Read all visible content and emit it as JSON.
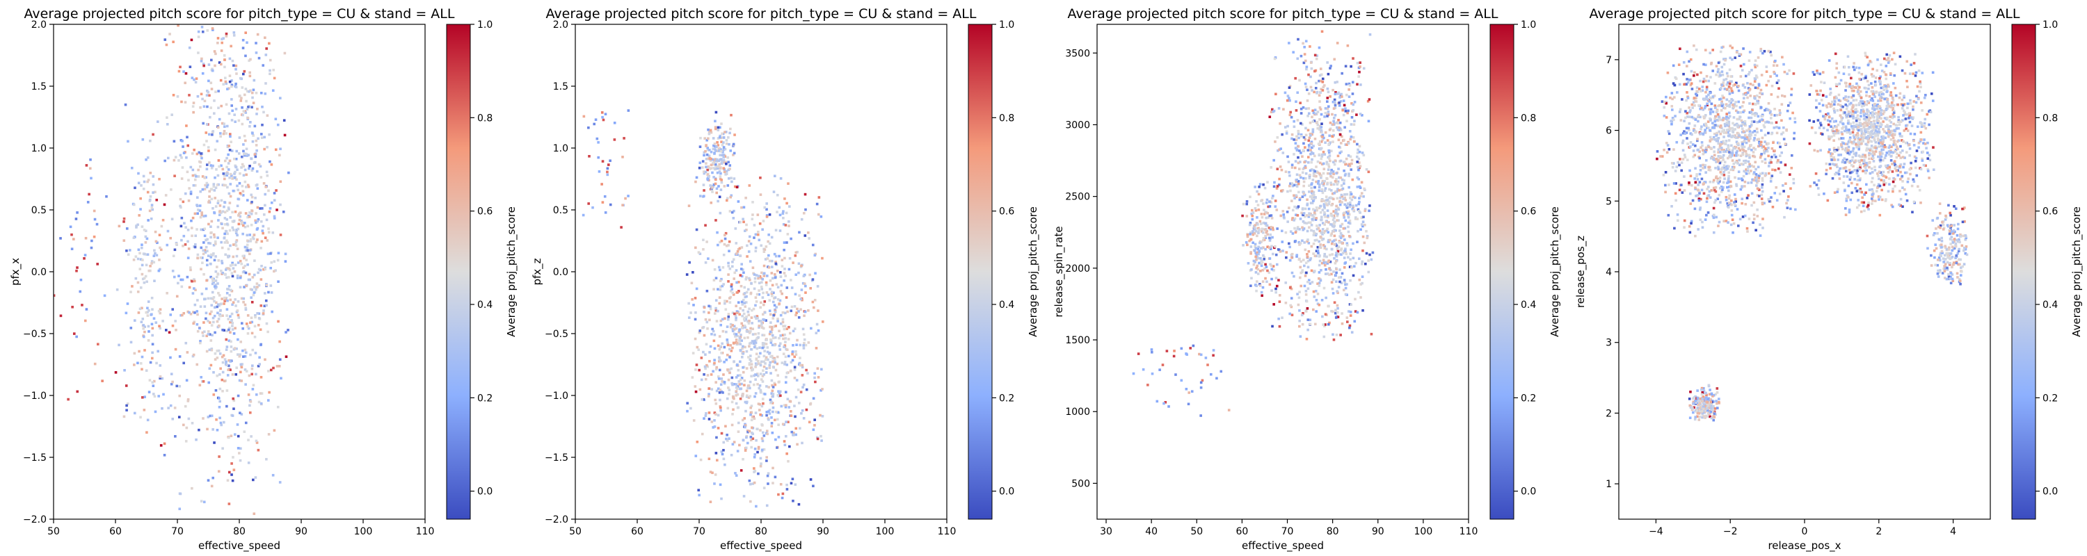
{
  "chart_data": [
    {
      "type": "heatmap",
      "title": "Average projected pitch score for pitch_type = CU & stand = ALL",
      "xlabel": "effective_speed",
      "ylabel": "pfx_x",
      "xlim": [
        50,
        110
      ],
      "ylim": [
        -2,
        2
      ],
      "xticks": [
        50,
        60,
        70,
        80,
        90,
        100,
        110
      ],
      "yticks": [
        -2.0,
        -1.5,
        -1.0,
        -0.5,
        0.0,
        0.5,
        1.0,
        1.5,
        2.0
      ],
      "colorbar": {
        "label": "Average proj_pitch_score",
        "colormap": "coolwarm",
        "range": [
          -0.06,
          1.0
        ],
        "ticks": [
          0.0,
          0.2,
          0.4,
          0.6,
          0.8,
          1.0
        ]
      },
      "cluster_regions": [
        {
          "x": [
            68,
            88
          ],
          "y": [
            -2.0,
            2.0
          ],
          "center": [
            78,
            0.3
          ],
          "density": "high"
        },
        {
          "x": [
            60,
            68
          ],
          "y": [
            -1.5,
            1.5
          ],
          "center": [
            65,
            0.0
          ],
          "density": "low"
        },
        {
          "x": [
            50,
            60
          ],
          "y": [
            -1.3,
            1.1
          ],
          "center": [
            55,
            0.0
          ],
          "density": "sparse outliers"
        }
      ]
    },
    {
      "type": "heatmap",
      "title": "Average projected pitch score for pitch_type = CU & stand = ALL",
      "xlabel": "effective_speed",
      "ylabel": "pfx_z",
      "xlim": [
        50,
        110
      ],
      "ylim": [
        -2,
        2
      ],
      "xticks": [
        50,
        60,
        70,
        80,
        90,
        100,
        110
      ],
      "yticks": [
        -2.0,
        -1.5,
        -1.0,
        -0.5,
        0.0,
        0.5,
        1.0,
        1.5,
        2.0
      ],
      "colorbar": {
        "label": "Average proj_pitch_score",
        "colormap": "coolwarm",
        "range": [
          -0.06,
          1.0
        ],
        "ticks": [
          0.0,
          0.2,
          0.4,
          0.6,
          0.8,
          1.0
        ]
      },
      "cluster_regions": [
        {
          "x": [
            68,
            90
          ],
          "y": [
            -1.9,
            0.8
          ],
          "center": [
            79,
            -0.6
          ],
          "density": "high"
        },
        {
          "x": [
            70,
            76
          ],
          "y": [
            0.6,
            1.3
          ],
          "center": [
            73,
            0.9
          ],
          "density": "low"
        },
        {
          "x": [
            51,
            60
          ],
          "y": [
            -0.3,
            1.4
          ],
          "center": [
            54,
            0.9
          ],
          "density": "sparse outliers"
        }
      ]
    },
    {
      "type": "heatmap",
      "title": "Average projected pitch score for pitch_type = CU & stand = ALL",
      "xlabel": "effective_speed",
      "ylabel": "release_spin_rate",
      "xlim": [
        28,
        110
      ],
      "ylim": [
        250,
        3700
      ],
      "xticks": [
        30,
        40,
        50,
        60,
        70,
        80,
        90,
        100,
        110
      ],
      "yticks": [
        500,
        1000,
        1500,
        2000,
        2500,
        3000,
        3500
      ],
      "colorbar": {
        "label": "Average proj_pitch_score",
        "colormap": "coolwarm",
        "range": [
          -0.06,
          1.0
        ],
        "ticks": [
          0.0,
          0.2,
          0.4,
          0.6,
          0.8,
          1.0
        ]
      },
      "cluster_regions": [
        {
          "x": [
            66,
            89
          ],
          "y": [
            1500,
            3650
          ],
          "center": [
            78,
            2500
          ],
          "density": "high"
        },
        {
          "x": [
            60,
            68
          ],
          "y": [
            1800,
            2600
          ],
          "center": [
            64,
            2200
          ],
          "density": "low"
        },
        {
          "x": [
            36,
            58
          ],
          "y": [
            900,
            1500
          ],
          "center": [
            48,
            1300
          ],
          "density": "sparse outliers"
        }
      ]
    },
    {
      "type": "heatmap",
      "title": "Average projected pitch score for pitch_type = CU & stand = ALL",
      "xlabel": "release_pos_x",
      "ylabel": "release_pos_z",
      "xlim": [
        -5,
        5
      ],
      "ylim": [
        0.5,
        7.5
      ],
      "xticks": [
        -4,
        -2,
        0,
        2,
        4
      ],
      "yticks": [
        1,
        2,
        3,
        4,
        5,
        6,
        7
      ],
      "colorbar": {
        "label": "Average proj_pitch_score",
        "colormap": "coolwarm",
        "range": [
          -0.06,
          1.0
        ],
        "ticks": [
          0.0,
          0.2,
          0.4,
          0.6,
          0.8,
          1.0
        ]
      },
      "cluster_regions": [
        {
          "x": [
            -4.0,
            -0.2
          ],
          "y": [
            4.5,
            7.2
          ],
          "center": [
            -2.0,
            5.9
          ],
          "density": "high"
        },
        {
          "x": [
            0.1,
            3.5
          ],
          "y": [
            4.8,
            7.1
          ],
          "center": [
            1.8,
            6.0
          ],
          "density": "high"
        },
        {
          "x": [
            3.3,
            4.4
          ],
          "y": [
            3.8,
            5.0
          ],
          "center": [
            3.9,
            4.3
          ],
          "density": "low"
        },
        {
          "x": [
            -3.1,
            -2.3
          ],
          "y": [
            1.9,
            2.4
          ],
          "center": [
            -2.7,
            2.1
          ],
          "density": "low"
        }
      ]
    }
  ]
}
